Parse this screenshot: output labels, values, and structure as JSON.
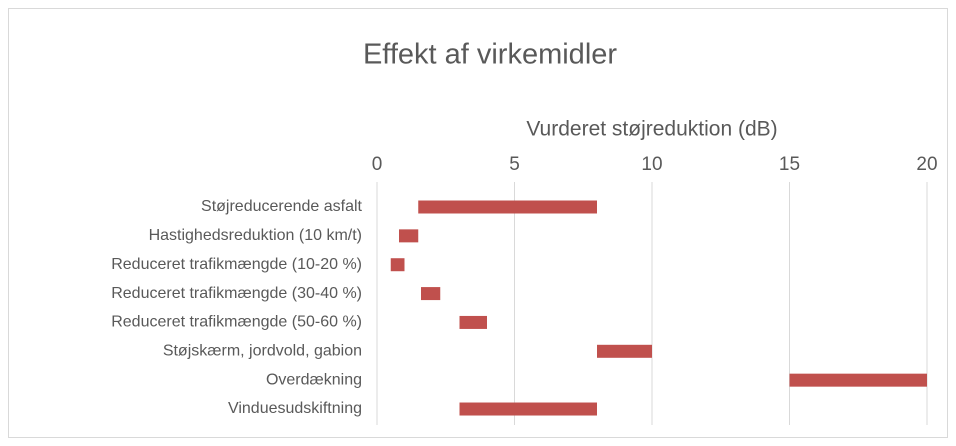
{
  "chart_data": {
    "type": "floating-bar",
    "title": "Effekt af virkemidler",
    "xlabel": "Vurderet støjreduktion (dB)",
    "categories": [
      "Støjreducerende asfalt",
      "Hastighedsreduktion (10 km/t)",
      "Reduceret trafikmængde (10-20 %)",
      "Reduceret trafikmængde (30-40 %)",
      "Reduceret trafikmængde (50-60 %)",
      "Støjskærm, jordvold, gabion",
      "Overdækning",
      "Vinduesudskiftning"
    ],
    "low": [
      1.5,
      0.8,
      0.5,
      1.6,
      3,
      8,
      15,
      3
    ],
    "high": [
      8,
      1.5,
      1,
      2.3,
      4,
      10,
      20,
      8
    ],
    "color": "#c0504d",
    "xlim": [
      0,
      20
    ],
    "xticks": [
      0,
      5,
      10,
      15,
      20
    ],
    "grid": true
  }
}
